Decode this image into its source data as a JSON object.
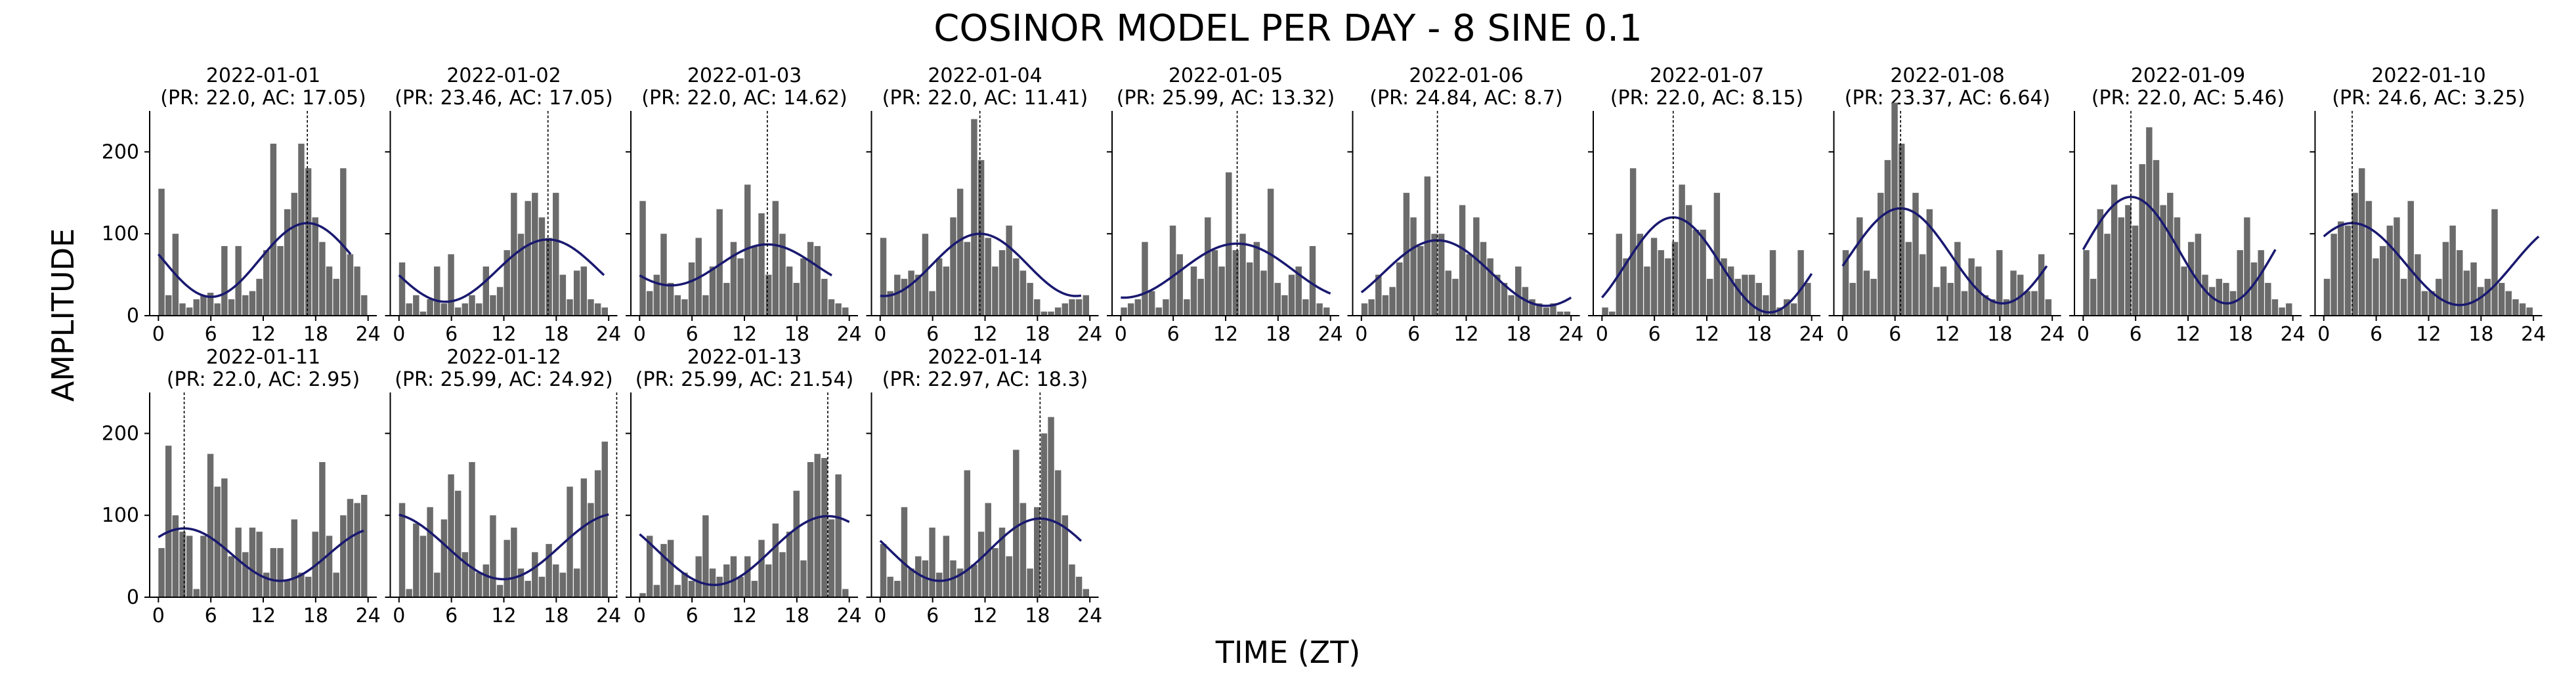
{
  "chart_data": {
    "type": "bar",
    "title": "COSINOR MODEL PER DAY - 8 SINE 0.1",
    "xlabel": "TIME (ZT)",
    "ylabel": "AMPLITUDE",
    "xlim": [
      -1,
      25
    ],
    "ylim": [
      0,
      250
    ],
    "xticks": [
      0,
      6,
      12,
      18,
      24
    ],
    "yticks": [
      0,
      100,
      200
    ],
    "grid": false,
    "colors": {
      "bar": "#6b6b6b",
      "fit": "#191970",
      "acrophase_line": "#000000"
    },
    "panels": [
      {
        "date": "2022-01-01",
        "subtitle": "(PR: 22.0, AC: 17.05)",
        "period": 22.0,
        "acrophase": 17.05,
        "mesor": 68,
        "amplitude": 45,
        "line_range": [
          0,
          22
        ],
        "values": [
          155,
          25,
          100,
          15,
          10,
          20,
          25,
          28,
          15,
          85,
          20,
          85,
          25,
          30,
          45,
          80,
          210,
          85,
          130,
          150,
          210,
          180,
          120,
          90,
          60,
          45,
          180,
          75,
          60,
          25
        ]
      },
      {
        "date": "2022-01-02",
        "subtitle": "(PR: 23.46, AC: 17.05)",
        "period": 23.46,
        "acrophase": 17.05,
        "mesor": 55,
        "amplitude": 38,
        "line_range": [
          0,
          23.46
        ],
        "values": [
          65,
          15,
          25,
          5,
          20,
          60,
          15,
          75,
          10,
          15,
          25,
          15,
          60,
          25,
          35,
          80,
          150,
          100,
          140,
          150,
          120,
          95,
          150,
          50,
          20,
          55,
          60,
          20,
          15,
          10
        ]
      },
      {
        "date": "2022-01-03",
        "subtitle": "(PR: 22.0, AC: 14.62)",
        "period": 22.0,
        "acrophase": 14.62,
        "mesor": 62,
        "amplitude": 25,
        "line_range": [
          0,
          22
        ],
        "values": [
          140,
          30,
          50,
          100,
          40,
          25,
          20,
          65,
          95,
          25,
          60,
          130,
          40,
          90,
          70,
          160,
          85,
          125,
          50,
          140,
          100,
          60,
          40,
          70,
          90,
          85,
          45,
          20,
          15,
          10
        ]
      },
      {
        "date": "2022-01-04",
        "subtitle": "(PR: 22.0, AC: 11.41)",
        "period": 22.0,
        "acrophase": 11.41,
        "mesor": 62,
        "amplitude": 38,
        "line_range": [
          0,
          23
        ],
        "values": [
          95,
          30,
          50,
          45,
          55,
          50,
          100,
          30,
          70,
          60,
          120,
          155,
          90,
          240,
          190,
          95,
          60,
          80,
          110,
          70,
          55,
          40,
          20,
          5,
          5,
          10,
          15,
          20,
          20,
          25
        ]
      },
      {
        "date": "2022-01-05",
        "subtitle": "(PR: 25.99, AC: 13.32)",
        "period": 25.99,
        "acrophase": 13.32,
        "mesor": 55,
        "amplitude": 33,
        "line_range": [
          0,
          24
        ],
        "values": [
          10,
          15,
          20,
          90,
          30,
          10,
          20,
          110,
          75,
          20,
          60,
          45,
          120,
          80,
          60,
          175,
          80,
          100,
          65,
          90,
          55,
          155,
          40,
          25,
          50,
          60,
          20,
          85,
          15,
          10
        ]
      },
      {
        "date": "2022-01-06",
        "subtitle": "(PR: 24.84, AC: 8.7)",
        "period": 24.84,
        "acrophase": 8.7,
        "mesor": 52,
        "amplitude": 40,
        "line_range": [
          0,
          24
        ],
        "values": [
          15,
          20,
          50,
          25,
          35,
          65,
          150,
          120,
          85,
          170,
          100,
          100,
          55,
          45,
          135,
          75,
          120,
          90,
          70,
          50,
          40,
          25,
          60,
          35,
          20,
          15,
          10,
          15,
          5,
          5
        ]
      },
      {
        "date": "2022-01-07",
        "subtitle": "(PR: 22.0, AC: 8.15)",
        "period": 22.0,
        "acrophase": 8.15,
        "mesor": 62,
        "amplitude": 58,
        "line_range": [
          0,
          24
        ],
        "values": [
          10,
          5,
          100,
          70,
          180,
          100,
          60,
          95,
          80,
          70,
          90,
          160,
          135,
          105,
          105,
          45,
          150,
          70,
          60,
          45,
          50,
          50,
          40,
          25,
          80,
          10,
          20,
          15,
          80,
          40
        ]
      },
      {
        "date": "2022-01-08",
        "subtitle": "(PR: 23.37, AC: 6.64)",
        "period": 23.37,
        "acrophase": 6.64,
        "mesor": 73,
        "amplitude": 58,
        "line_range": [
          0,
          23.37
        ],
        "values": [
          80,
          40,
          120,
          55,
          45,
          150,
          190,
          260,
          210,
          90,
          150,
          75,
          130,
          35,
          60,
          40,
          90,
          30,
          70,
          60,
          25,
          20,
          80,
          20,
          55,
          50,
          30,
          30,
          75,
          20
        ]
      },
      {
        "date": "2022-01-09",
        "subtitle": "(PR: 22.0, AC: 5.46)",
        "period": 22.0,
        "acrophase": 5.46,
        "mesor": 80,
        "amplitude": 65,
        "line_range": [
          0,
          22
        ],
        "values": [
          80,
          45,
          130,
          100,
          160,
          120,
          135,
          110,
          185,
          230,
          190,
          135,
          150,
          120,
          60,
          90,
          100,
          50,
          35,
          45,
          40,
          30,
          80,
          120,
          65,
          80,
          40,
          20,
          10,
          15
        ]
      },
      {
        "date": "2022-01-10",
        "subtitle": "(PR: 24.6, AC: 3.25)",
        "period": 24.6,
        "acrophase": 3.25,
        "mesor": 63,
        "amplitude": 50,
        "line_range": [
          0,
          24.6
        ],
        "values": [
          45,
          100,
          115,
          110,
          150,
          180,
          140,
          70,
          85,
          110,
          120,
          45,
          140,
          75,
          30,
          30,
          45,
          90,
          110,
          80,
          55,
          65,
          35,
          45,
          130,
          40,
          30,
          20,
          15,
          10
        ]
      },
      {
        "date": "2022-01-11",
        "subtitle": "(PR: 22.0, AC: 2.95)",
        "period": 22.0,
        "acrophase": 2.95,
        "mesor": 52,
        "amplitude": 32,
        "line_range": [
          0,
          23.5
        ],
        "values": [
          60,
          185,
          100,
          80,
          75,
          10,
          75,
          175,
          135,
          145,
          50,
          85,
          55,
          85,
          80,
          30,
          60,
          60,
          20,
          95,
          30,
          25,
          80,
          165,
          75,
          30,
          100,
          120,
          115,
          125
        ]
      },
      {
        "date": "2022-01-12",
        "subtitle": "(PR: 25.99, AC: 24.92)",
        "period": 25.99,
        "acrophase": 24.92,
        "mesor": 62,
        "amplitude": 40,
        "line_range": [
          0,
          24
        ],
        "values": [
          115,
          10,
          90,
          75,
          110,
          30,
          95,
          150,
          130,
          55,
          165,
          30,
          40,
          100,
          15,
          70,
          85,
          35,
          20,
          55,
          25,
          65,
          40,
          30,
          135,
          35,
          145,
          115,
          155,
          190
        ]
      },
      {
        "date": "2022-01-13",
        "subtitle": "(PR: 25.99, AC: 21.54)",
        "period": 25.99,
        "acrophase": 21.54,
        "mesor": 57,
        "amplitude": 42,
        "line_range": [
          0,
          24
        ],
        "values": [
          5,
          75,
          15,
          65,
          70,
          15,
          30,
          20,
          50,
          100,
          35,
          25,
          40,
          50,
          25,
          50,
          20,
          70,
          40,
          90,
          55,
          80,
          130,
          45,
          165,
          175,
          170,
          95,
          150,
          10
        ]
      },
      {
        "date": "2022-01-14",
        "subtitle": "(PR: 22.97, AC: 18.3)",
        "period": 22.97,
        "acrophase": 18.3,
        "mesor": 58,
        "amplitude": 38,
        "line_range": [
          0,
          23
        ],
        "values": [
          65,
          25,
          20,
          110,
          35,
          50,
          45,
          85,
          30,
          75,
          45,
          35,
          155,
          40,
          80,
          115,
          60,
          85,
          50,
          180,
          115,
          35,
          110,
          200,
          220,
          155,
          100,
          40,
          25,
          10
        ]
      }
    ]
  }
}
